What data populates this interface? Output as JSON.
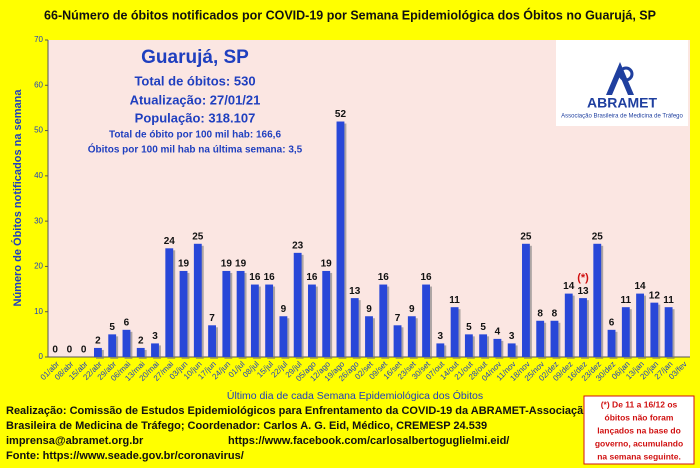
{
  "chart_data": {
    "type": "bar",
    "title": "66-Número de óbitos notificados por COVID-19 por Semana Epidemiológica dos Óbitos no Guarujá, SP",
    "categories": [
      "01/abr",
      "08/abr",
      "15/abr",
      "22/abr",
      "29/abr",
      "06/mai",
      "13/mai",
      "20/mai",
      "27/mai",
      "03/jun",
      "10/jun",
      "17/jun",
      "24/jun",
      "01/jul",
      "08/jul",
      "15/jul",
      "22/jul",
      "29/jul",
      "05/ago",
      "12/ago",
      "19/ago",
      "26/ago",
      "02/set",
      "09/set",
      "16/set",
      "23/set",
      "30/set",
      "07/out",
      "14/out",
      "21/out",
      "28/out",
      "04/nov",
      "11/nov",
      "18/nov",
      "25/nov",
      "02/dez",
      "09/dez",
      "16/dez",
      "23/dez",
      "30/dez",
      "06/jan",
      "13/jan",
      "20/jan",
      "27/jan",
      "03/fev"
    ],
    "values": [
      0,
      0,
      0,
      2,
      5,
      6,
      2,
      3,
      24,
      19,
      25,
      7,
      19,
      19,
      16,
      16,
      9,
      23,
      16,
      19,
      52,
      13,
      9,
      16,
      7,
      9,
      16,
      3,
      11,
      5,
      5,
      4,
      3,
      25,
      8,
      8,
      14,
      13,
      25,
      6,
      11,
      14,
      12,
      11,
      null
    ],
    "color": "#2847d8",
    "ylim": [
      0,
      70
    ],
    "yticks": [
      0,
      10,
      20,
      30,
      40,
      50,
      60,
      70
    ],
    "grid": false,
    "xlabel": "Último dia de cada Semana Epidemiológica dos Óbitos",
    "ylabel": "Número de Óbitos notificados na semana",
    "annotation": {
      "text": "(*)",
      "index": 37,
      "color": "#d01010"
    },
    "info": [
      "Guarujá, SP",
      "Total de óbitos: 530",
      "Atualização: 27/01/21",
      "População: 318.107",
      "Total de óbito por 100 mil hab: 166,6",
      "Óbitos por 100 mil hab na última semana: 3,5"
    ],
    "logo": [
      "ABRAMET",
      "Associação Brasileira de Medicina de Tráfego"
    ],
    "footer": [
      "Realização: Comissão de Estudos Epidemiológicos para Enfrentamento da COVID-19 da ABRAMET-Associação",
      "Brasileira de Medicina de Tráfego; Coordenador: Carlos A. G. Eid, Médico, CREMESP 24.539",
      "imprensa@abramet.org.br",
      "https://www.facebook.com/carlosalbertoguglielmi.eid/",
      "Fonte: https://www.seade.gov.br/coronavirus/"
    ],
    "note": [
      "(*) De 11 a 16/12 os",
      "óbitos não foram",
      "lançados na base do",
      "governo, acumulando",
      "na semana seguinte."
    ]
  }
}
